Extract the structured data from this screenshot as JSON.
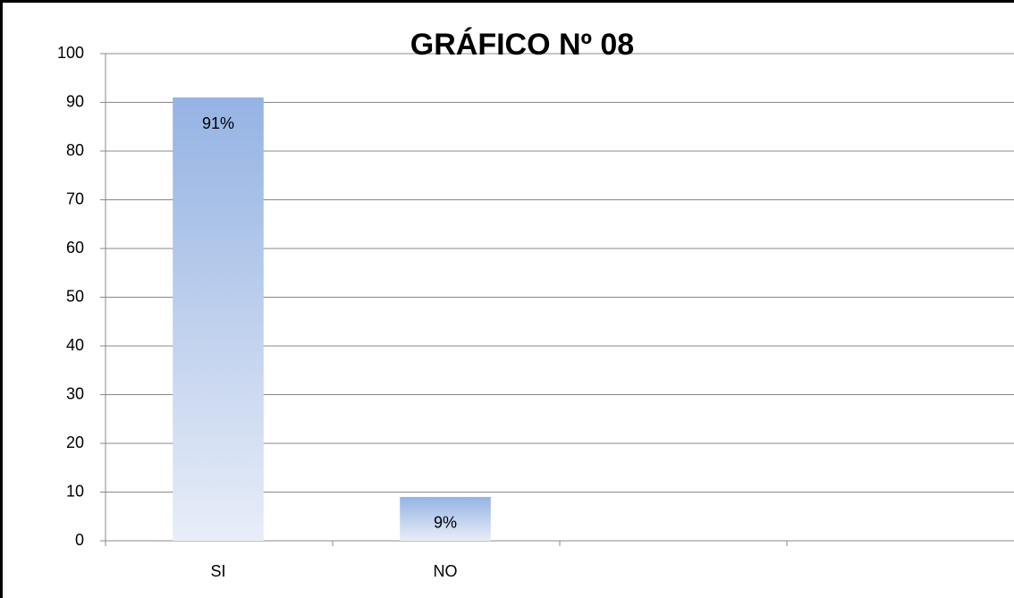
{
  "chart_data": {
    "type": "bar",
    "title": "GRÁFICO Nº 08",
    "categories": [
      "SI",
      "NO",
      null,
      null
    ],
    "values": [
      91,
      9,
      null,
      null
    ],
    "value_labels": [
      "91%",
      "9%",
      null,
      null
    ],
    "color": "#95b3e3",
    "ylim": [
      0,
      100
    ],
    "yticks": [
      0,
      10,
      20,
      30,
      40,
      50,
      60,
      70,
      80,
      90,
      100
    ],
    "grid": true
  }
}
